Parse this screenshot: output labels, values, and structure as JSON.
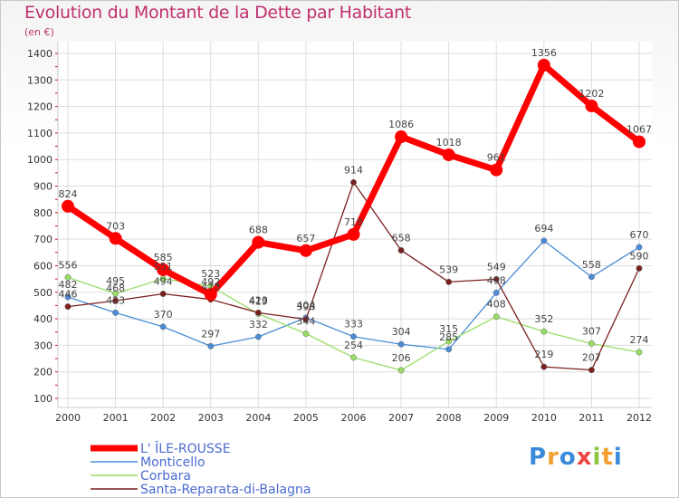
{
  "title": "Evolution du Montant de la Dette par Habitant",
  "unit": "(en €)",
  "logo": "Proxiti",
  "chart_data": {
    "type": "line",
    "x": [
      2000,
      2001,
      2002,
      2003,
      2004,
      2005,
      2006,
      2007,
      2008,
      2009,
      2010,
      2011,
      2012
    ],
    "ylim": [
      100,
      1400
    ],
    "yticks": [
      100,
      200,
      300,
      400,
      500,
      600,
      700,
      800,
      900,
      1000,
      1100,
      1200,
      1300,
      1400
    ],
    "grid": true,
    "legend_position": "bottom-left",
    "series": [
      {
        "name": "L' ÎLE-ROUSSE",
        "color": "#ff0000",
        "values": [
          824,
          703,
          585,
          492,
          688,
          657,
          718,
          1086,
          1018,
          961,
          1356,
          1202,
          1067
        ]
      },
      {
        "name": "Monticello",
        "color": "#4a8cd6",
        "values": [
          482,
          423,
          370,
          297,
          332,
          404,
          333,
          304,
          285,
          498,
          694,
          558,
          670
        ]
      },
      {
        "name": "Corbara",
        "color": "#99dd66",
        "values": [
          556,
          495,
          551,
          523,
          419,
          344,
          254,
          206,
          315,
          408,
          352,
          307,
          274
        ]
      },
      {
        "name": "Santa-Reparata-di-Balagna",
        "color": "#7a1f1f",
        "values": [
          446,
          468,
          494,
          473,
          423,
          398,
          914,
          658,
          539,
          549,
          219,
          207,
          590
        ]
      }
    ]
  }
}
